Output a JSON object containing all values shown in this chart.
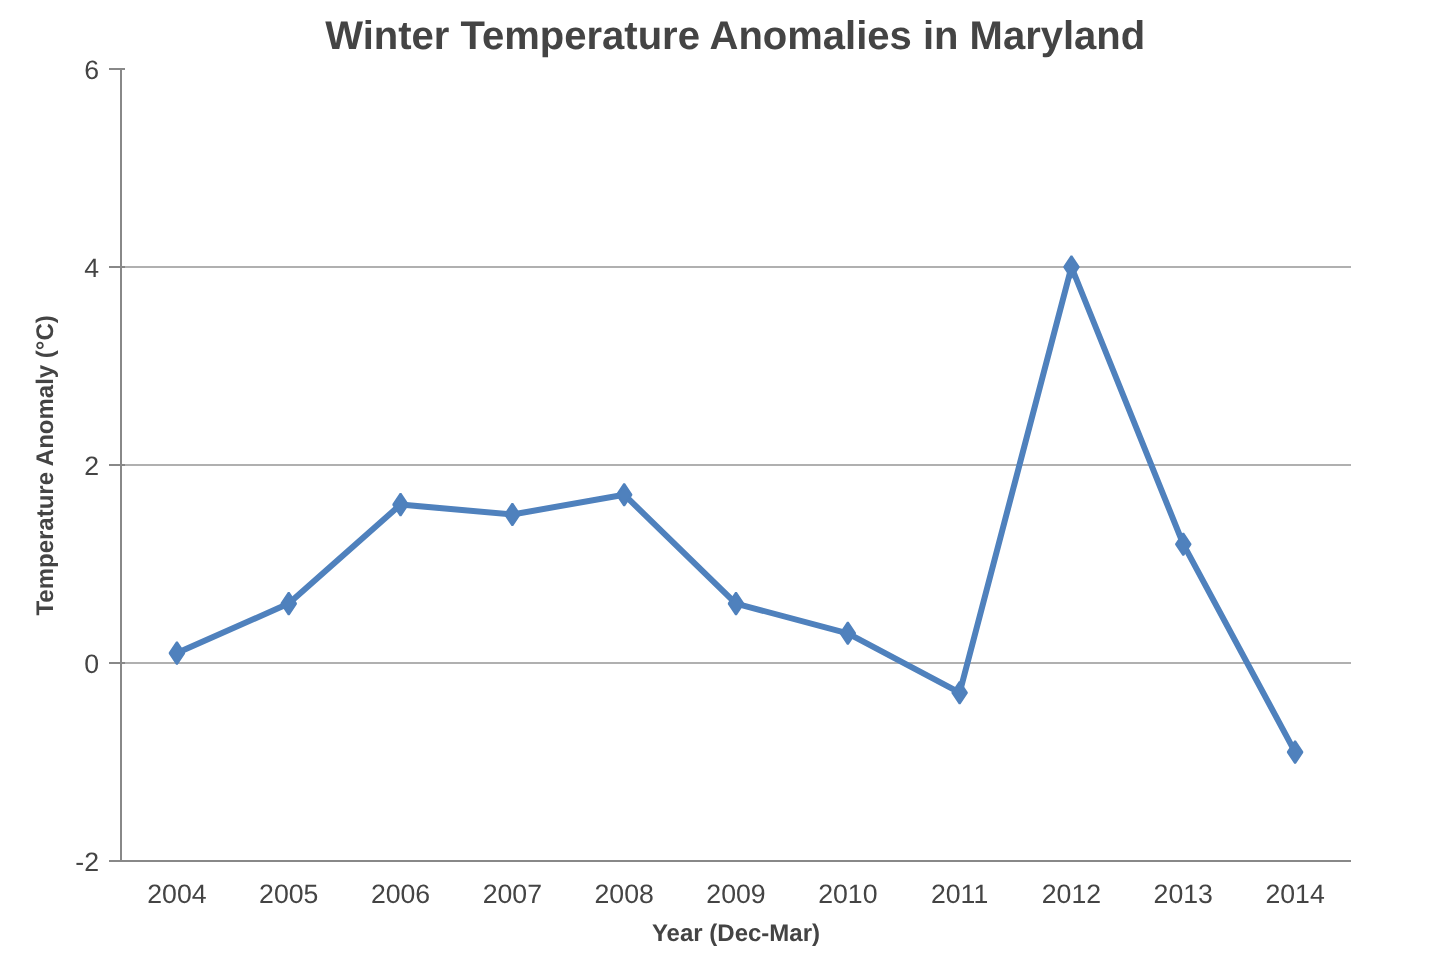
{
  "chart_data": {
    "type": "line",
    "title": "Winter Temperature Anomalies in Maryland",
    "xlabel": "Year (Dec-Mar)",
    "ylabel": "Temperature Anomaly (°C)",
    "categories": [
      "2004",
      "2005",
      "2006",
      "2007",
      "2008",
      "2009",
      "2010",
      "2011",
      "2012",
      "2013",
      "2014"
    ],
    "series": [
      {
        "color": "#4f81bd",
        "values": [
          0.1,
          0.6,
          1.6,
          1.5,
          1.7,
          0.6,
          0.3,
          -0.3,
          4.0,
          1.2,
          -0.9
        ]
      }
    ],
    "ylim": [
      -2,
      6
    ],
    "yticks": [
      -2,
      0,
      2,
      4,
      6
    ],
    "grid": "y",
    "marker": "diamond",
    "line_style": "solid"
  }
}
